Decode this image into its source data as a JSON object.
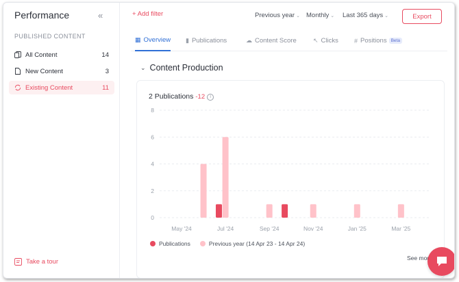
{
  "sidebar": {
    "title": "Performance",
    "section": "PUBLISHED CONTENT",
    "items": [
      {
        "label": "All Content",
        "count": "14"
      },
      {
        "label": "New Content",
        "count": "3"
      },
      {
        "label": "Existing Content",
        "count": "11"
      }
    ],
    "tour": "Take a tour"
  },
  "toolbar": {
    "add_filter": "+ Add filter",
    "period": "Previous year",
    "interval": "Monthly",
    "range": "Last 365 days",
    "export": "Export"
  },
  "tabs": [
    {
      "label": "Overview"
    },
    {
      "label": "Publications"
    },
    {
      "label": "Content Score"
    },
    {
      "label": "Clicks"
    },
    {
      "label": "Positions",
      "badge": "Beta"
    }
  ],
  "section": {
    "title": "Content Production",
    "card_title": "2 Publications",
    "delta": "-12",
    "see_more": "See more"
  },
  "colors": {
    "accent": "#e84a5f",
    "previous": "#ffc2c9",
    "tab_active": "#2f6fd6"
  },
  "chart_data": {
    "type": "bar",
    "ylim": [
      0,
      8
    ],
    "yticks": [
      "0",
      "2",
      "4",
      "6",
      "8"
    ],
    "xlim": [
      0,
      12.3
    ],
    "xticks": [
      {
        "label": "May '24",
        "x": 1.0
      },
      {
        "label": "Jul '24",
        "x": 3.0
      },
      {
        "label": "Sep '24",
        "x": 5.0
      },
      {
        "label": "Nov '24",
        "x": 7.0
      },
      {
        "label": "Jan '25",
        "x": 9.0
      },
      {
        "label": "Mar '25",
        "x": 11.0
      }
    ],
    "series": [
      {
        "name": "Publications",
        "points": [
          {
            "x": 2.7,
            "y": 1
          },
          {
            "x": 5.7,
            "y": 1
          }
        ]
      },
      {
        "name": "Previous year (14 Apr 23 - 14 Apr 24)",
        "points": [
          {
            "x": 2.0,
            "y": 4
          },
          {
            "x": 3.0,
            "y": 6
          },
          {
            "x": 5.0,
            "y": 1
          },
          {
            "x": 7.0,
            "y": 1
          },
          {
            "x": 9.0,
            "y": 1
          },
          {
            "x": 11.0,
            "y": 1
          }
        ]
      }
    ]
  }
}
